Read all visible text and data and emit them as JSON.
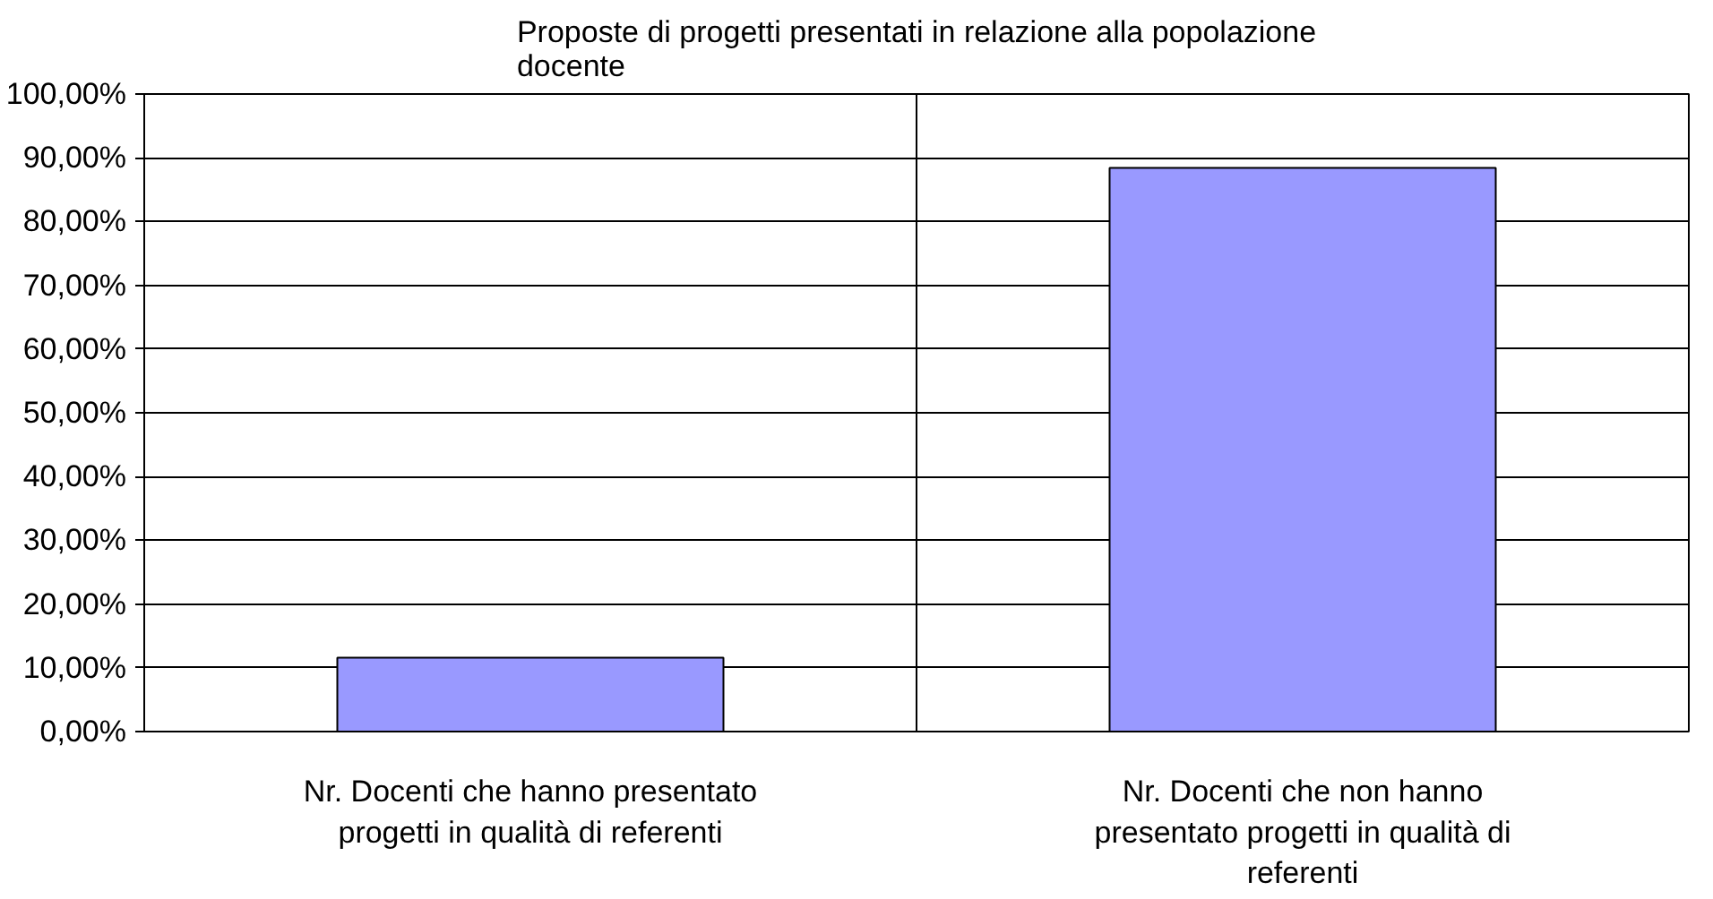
{
  "chart_data": {
    "type": "bar",
    "title": "Proposte di progetti presentati in relazione alla popolazione docente",
    "categories": [
      "Nr. Docenti che hanno presentato progetti in qualità di referenti",
      "Nr. Docenti che non hanno presentato progetti in qualità di referenti"
    ],
    "values": [
      11.6,
      88.4
    ],
    "color": "#9999ff",
    "ylim": [
      0,
      100
    ],
    "yticks": [
      {
        "value": 0,
        "label": "0,00%"
      },
      {
        "value": 10,
        "label": "10,00%"
      },
      {
        "value": 20,
        "label": "20,00%"
      },
      {
        "value": 30,
        "label": "30,00%"
      },
      {
        "value": 40,
        "label": "40,00%"
      },
      {
        "value": 50,
        "label": "50,00%"
      },
      {
        "value": 60,
        "label": "60,00%"
      },
      {
        "value": 70,
        "label": "70,00%"
      },
      {
        "value": 80,
        "label": "80,00%"
      },
      {
        "value": 90,
        "label": "90,00%"
      },
      {
        "value": 100,
        "label": "100,00%"
      }
    ],
    "grid": true
  }
}
